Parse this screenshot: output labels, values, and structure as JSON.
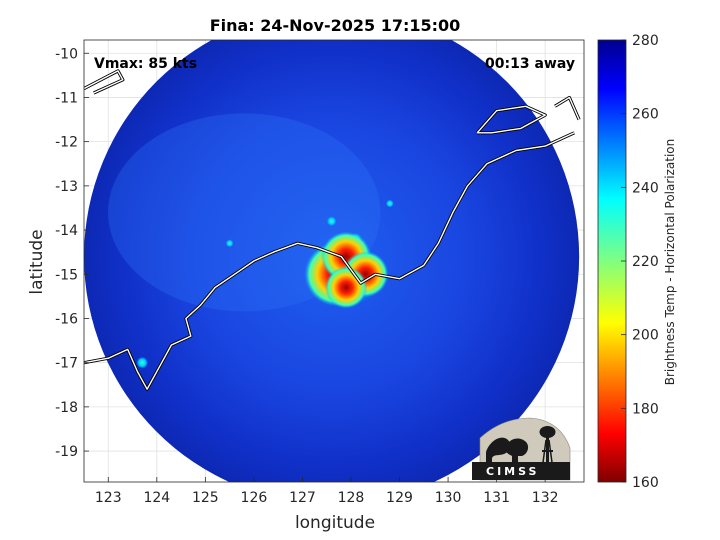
{
  "chart_data": {
    "type": "heatmap",
    "title": "Fina: 24-Nov-2025 17:15:00",
    "xlabel": "longitude",
    "ylabel": "latitude",
    "xlim": [
      122.5,
      132.8
    ],
    "ylim": [
      -19.7,
      -9.7
    ],
    "xticks": [
      123,
      124,
      125,
      126,
      127,
      128,
      129,
      130,
      131,
      132
    ],
    "yticks": [
      -10,
      -11,
      -12,
      -13,
      -14,
      -15,
      -16,
      -17,
      -18,
      -19
    ],
    "grid": true,
    "annotations": {
      "vmax": "Vmax: 85 kts",
      "timing": "00:13 away"
    },
    "colorbar": {
      "label": "Brightness Temp - Horizontal Polarization",
      "range": [
        160,
        280
      ],
      "ticks": [
        160,
        180,
        200,
        220,
        240,
        260,
        280
      ],
      "colormap": "jet"
    },
    "storm_center": {
      "lon": 127.8,
      "lat": -14.9
    },
    "swath": {
      "center_lon": 127.6,
      "center_lat": -14.6,
      "radius_deg": 5.1
    },
    "cold_core": [
      {
        "lon": 127.7,
        "lat": -15.0,
        "value": 170
      },
      {
        "lon": 127.9,
        "lat": -14.6,
        "value": 205
      },
      {
        "lon": 128.3,
        "lat": -15.0,
        "value": 215
      },
      {
        "lon": 127.9,
        "lat": -15.3,
        "value": 225
      }
    ]
  },
  "logo": {
    "text": "CIMSS"
  }
}
